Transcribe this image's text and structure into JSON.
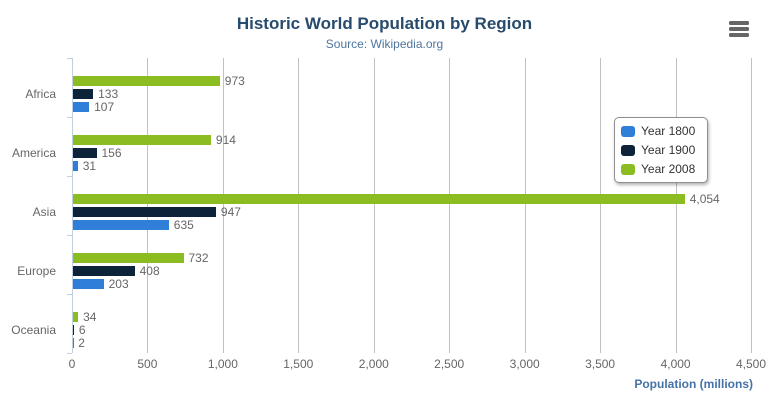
{
  "chart_data": {
    "type": "bar",
    "title": "Historic World Population by Region",
    "subtitle": "Source: Wikipedia.org",
    "categories": [
      "Africa",
      "America",
      "Asia",
      "Europe",
      "Oceania"
    ],
    "series": [
      {
        "name": "Year 1800",
        "color": "#2f7ed8",
        "values": [
          107,
          31,
          635,
          203,
          2
        ]
      },
      {
        "name": "Year 1900",
        "color": "#0d233a",
        "values": [
          133,
          156,
          947,
          408,
          6
        ]
      },
      {
        "name": "Year 2008",
        "color": "#8bbc21",
        "values": [
          973,
          914,
          4054,
          732,
          34
        ]
      }
    ],
    "bar_display_order_top_to_bottom": [
      "Year 2008",
      "Year 1900",
      "Year 1800"
    ],
    "data_labels": [
      "973",
      "133",
      "107",
      "914",
      "156",
      "31",
      "4,054",
      "947",
      "635",
      "732",
      "408",
      "203",
      "34",
      "6",
      "2"
    ],
    "xlabel": "Population (millions)",
    "ylabel": "",
    "xlim": [
      0,
      4500
    ],
    "tick_interval": 500,
    "tick_labels": [
      "0",
      "500",
      "1,000",
      "1,500",
      "2,000",
      "2,500",
      "3,000",
      "3,500",
      "4,000",
      "4,500"
    ],
    "legend_position": "right",
    "legend_items": [
      "Year 1800",
      "Year 1900",
      "Year 2008"
    ],
    "grid": true
  },
  "export_menu": {
    "icon": "hamburger-icon"
  },
  "style": {
    "title_color": "#274b6d",
    "subtitle_color": "#4d759e",
    "axis_label_color": "#666666",
    "axis_title_color": "#4572a7",
    "grid_line_color": "#c0c0c0",
    "axis_line_color": "#c0d0e0",
    "legend_border_color": "#909090",
    "legend_text_color": "#333333",
    "menu_icon_color": "#666666",
    "background_color": "#ffffff"
  }
}
